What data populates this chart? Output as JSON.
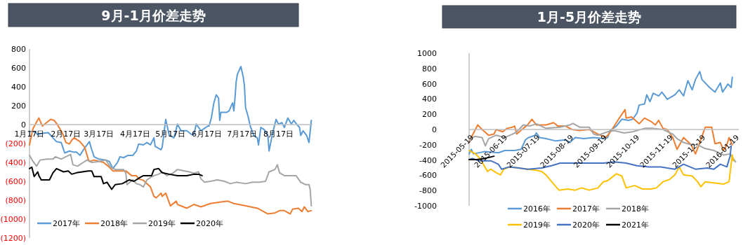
{
  "chart_data": [
    {
      "type": "line",
      "title": "9月-1月价差走势",
      "legend": "bottom",
      "xlim": [
        "--01-17",
        "--09-15"
      ],
      "ylim": [
        -1200,
        800
      ],
      "xticks": [
        {
          "value": "--01-17",
          "label": "1月17日"
        },
        {
          "value": "--02-17",
          "label": "2月17日"
        },
        {
          "value": "--03-17",
          "label": "3月17日"
        },
        {
          "value": "--04-17",
          "label": "4月17日"
        },
        {
          "value": "--05-17",
          "label": "5月17日"
        },
        {
          "value": "--06-17",
          "label": "6月17日"
        },
        {
          "value": "--07-17",
          "label": "7月17日"
        },
        {
          "value": "--08-17",
          "label": "8月17日"
        }
      ],
      "yticks": [
        800,
        600,
        400,
        200,
        0,
        {
          "value": -200,
          "label": "(200)"
        },
        {
          "value": -400,
          "label": "(400)"
        },
        {
          "value": -600,
          "label": "(600)"
        },
        {
          "value": -800,
          "label": "(800)"
        },
        {
          "value": -1000,
          "label": "(1000)"
        },
        {
          "value": -1200,
          "label": "(1200)"
        }
      ],
      "series": [
        {
          "name": "2017年",
          "color": "#5b9bd5",
          "x": [
            "--01-17",
            "--01-22",
            "--01-24",
            "--01-29",
            "--02-02",
            "--02-09",
            "--02-13",
            "--02-16",
            "--02-20",
            "--02-23",
            "--02-26",
            "--03-01",
            "--03-04",
            "--03-09",
            "--03-11",
            "--03-13",
            "--03-17",
            "--03-23",
            "--03-26",
            "--03-29",
            "--04-02",
            "--04-04",
            "--04-07",
            "--04-11",
            "--04-15",
            "--04-18",
            "--04-20",
            "--04-24",
            "--04-27",
            "--04-30",
            "--05-03",
            "--05-04",
            "--05-09",
            "--05-10",
            "--05-13",
            "--05-16",
            "--05-20",
            "--05-23",
            "--05-26",
            "--05-31",
            "--06-04",
            "--06-06",
            "--06-08",
            "--06-12",
            "--06-15",
            "--06-18",
            "--06-19",
            "--06-21",
            "--06-23",
            "--06-25",
            "--06-27",
            "--06-28",
            "--06-29",
            "--07-04",
            "--07-06",
            "--07-08",
            "--07-09",
            "--07-10",
            "--07-11",
            "--07-12",
            "--07-13",
            "--07-16",
            "--07-18",
            "--07-19",
            "--07-20",
            "--07-22",
            "--07-24",
            "--07-27",
            "--07-30",
            "--07-31",
            "--08-02",
            "--08-05",
            "--08-08",
            "--08-09",
            "--08-12",
            "--08-15",
            "--08-17",
            "--08-20",
            "--08-22",
            "--08-25",
            "--08-28",
            "--08-30",
            "--09-02",
            "--09-04",
            "--09-05",
            "--09-07",
            "--09-10",
            "--09-12",
            "--09-14"
          ],
          "values": [
            -70,
            -80,
            -105,
            -90,
            -85,
            -180,
            -190,
            -300,
            -280,
            -290,
            -290,
            -325,
            -265,
            -180,
            -265,
            -340,
            -365,
            -375,
            -390,
            -465,
            -400,
            -340,
            -350,
            -325,
            -325,
            -280,
            -205,
            -215,
            -190,
            -215,
            -140,
            -230,
            -265,
            -240,
            55,
            -115,
            -140,
            5,
            -65,
            -65,
            -105,
            -105,
            5,
            -65,
            -40,
            -15,
            -15,
            80,
            230,
            315,
            280,
            45,
            130,
            130,
            145,
            205,
            230,
            145,
            280,
            455,
            530,
            615,
            505,
            415,
            180,
            95,
            -15,
            -115,
            -140,
            -215,
            -30,
            -55,
            -115,
            -280,
            -90,
            55,
            5,
            20,
            -30,
            70,
            5,
            45,
            -5,
            -30,
            -115,
            -65,
            -115,
            -190,
            45
          ]
        },
        {
          "name": "2018年",
          "color": "#ed7d31",
          "x": [
            "--01-17",
            "--01-20",
            "--01-25",
            "--01-28",
            "--02-04",
            "--02-07",
            "--02-10",
            "--02-14",
            "--02-17",
            "--02-20",
            "--02-22",
            "--02-24",
            "--03-01",
            "--03-05",
            "--03-08",
            "--03-09",
            "--03-13",
            "--03-21",
            "--03-25",
            "--03-29",
            "--04-04",
            "--04-09",
            "--04-14",
            "--04-18",
            "--04-20",
            "--04-24",
            "--04-30",
            "--05-03",
            "--05-05",
            "--05-09",
            "--05-10",
            "--05-13",
            "--05-17",
            "--05-22",
            "--05-23",
            "--05-31",
            "--06-06",
            "--06-12",
            "--06-20",
            "--06-28",
            "--07-05",
            "--07-10",
            "--07-20",
            "--07-30",
            "--08-08",
            "--08-14",
            "--08-18",
            "--08-22",
            "--08-27",
            "--08-29",
            "--09-03",
            "--09-06",
            "--09-08",
            "--09-11",
            "--09-14"
          ],
          "values": [
            -215,
            -40,
            70,
            -15,
            55,
            45,
            -5,
            -90,
            -190,
            -205,
            -165,
            -140,
            -180,
            -240,
            -365,
            -390,
            -375,
            -400,
            -440,
            -490,
            -490,
            -490,
            -540,
            -540,
            -575,
            -590,
            -660,
            -760,
            -775,
            -725,
            -760,
            -725,
            -860,
            -810,
            -845,
            -885,
            -845,
            -870,
            -835,
            -820,
            -810,
            -835,
            -860,
            -885,
            -945,
            -935,
            -910,
            -910,
            -945,
            -895,
            -885,
            -920,
            -870,
            -920,
            -910
          ]
        },
        {
          "name": "2019年",
          "color": "#a5a5a5",
          "x": [
            "--01-17",
            "--01-20",
            "--01-23",
            "--01-26",
            "--02-01",
            "--02-06",
            "--02-08",
            "--02-13",
            "--02-17",
            "--02-21",
            "--02-23",
            "--02-27",
            "--03-02",
            "--03-07",
            "--03-11",
            "--03-17",
            "--03-23",
            "--03-27",
            "--03-31",
            "--04-04",
            "--04-07",
            "--04-09",
            "--04-10",
            "--04-15",
            "--04-18",
            "--04-21",
            "--04-24",
            "--04-27",
            "--04-30",
            "--05-03",
            "--05-07",
            "--05-10",
            "--05-14",
            "--05-19",
            "--05-23",
            "--05-29",
            "--06-02",
            "--06-06",
            "--06-10",
            "--06-12",
            "--06-15",
            "--06-20",
            "--06-26",
            "--07-02",
            "--07-07",
            "--07-12",
            "--07-20",
            "--07-26",
            "--08-01",
            "--08-06",
            "--08-09",
            "--08-14",
            "--08-16",
            "--08-18",
            "--08-22",
            "--08-28",
            "--09-01",
            "--09-05",
            "--09-09",
            "--09-12",
            "--09-13",
            "--09-14"
          ],
          "values": [
            -325,
            -390,
            -440,
            -375,
            -365,
            -365,
            -340,
            -365,
            -340,
            -315,
            -425,
            -440,
            -415,
            -375,
            -400,
            -390,
            -375,
            -450,
            -475,
            -475,
            -475,
            -510,
            -635,
            -585,
            -625,
            -635,
            -660,
            -585,
            -560,
            -540,
            -525,
            -500,
            -540,
            -515,
            -475,
            -490,
            -500,
            -515,
            -500,
            -575,
            -610,
            -600,
            -585,
            -600,
            -625,
            -610,
            -625,
            -610,
            -610,
            -600,
            -500,
            -475,
            -425,
            -510,
            -540,
            -540,
            -540,
            -610,
            -635,
            -635,
            -685,
            -860
          ]
        },
        {
          "name": "2020年",
          "color": "#000000",
          "x": [
            "--01-17",
            "--01-19",
            "--01-21",
            "--01-24",
            "--01-25",
            "--01-27",
            "--02-03",
            "--02-06",
            "--02-09",
            "--02-15",
            "--02-19",
            "--02-22",
            "--02-26",
            "--03-03",
            "--03-08",
            "--03-11",
            "--03-13",
            "--03-19",
            "--03-21",
            "--03-24",
            "--03-28",
            "--03-31",
            "--04-06",
            "--04-12",
            "--04-16",
            "--04-21",
            "--04-24",
            "--05-01",
            "--05-03",
            "--05-07",
            "--05-10",
            "--05-16",
            "--05-23",
            "--05-31",
            "--06-06",
            "--06-10",
            "--06-13"
          ],
          "values": [
            -465,
            -450,
            -550,
            -500,
            -540,
            -585,
            -585,
            -510,
            -465,
            -500,
            -490,
            -525,
            -510,
            -500,
            -490,
            -490,
            -550,
            -550,
            -625,
            -610,
            -685,
            -635,
            -625,
            -585,
            -600,
            -560,
            -540,
            -540,
            -475,
            -465,
            -510,
            -525,
            -540,
            -540,
            -525,
            -525,
            -540
          ]
        }
      ]
    },
    {
      "type": "line",
      "title": "1月-5月价差走势",
      "legend": "bottom",
      "xlim": [
        "2015-05-17",
        "2016-01-21"
      ],
      "ylim": [
        -1000,
        1000
      ],
      "xticks": [
        {
          "value": "2015-05-19",
          "label": "2015-05-19"
        },
        {
          "value": "2015-06-19",
          "label": "2015-06-19"
        },
        {
          "value": "2015-07-19",
          "label": "2015-07-19"
        },
        {
          "value": "2015-08-19",
          "label": "2015-08-19"
        },
        {
          "value": "2015-09-19",
          "label": "2015-09-19"
        },
        {
          "value": "2015-10-19",
          "label": "2015-10-19"
        },
        {
          "value": "2015-11-19",
          "label": "2015-11-19"
        },
        {
          "value": "2015-12-19",
          "label": "2015-12-19"
        },
        {
          "value": "2016-01-19",
          "label": "2016-01-19"
        }
      ],
      "yticks": [
        1000,
        800,
        600,
        400,
        200,
        0,
        -200,
        -400,
        -600,
        -800,
        -1000
      ],
      "series": [
        {
          "name": "2016年",
          "color": "#5b9bd5",
          "x": [
            "2015-05-17",
            "2015-05-19",
            "2015-05-21",
            "2015-05-31",
            "2015-06-13",
            "2015-06-19",
            "2015-06-28",
            "2015-07-04",
            "2015-07-08",
            "2015-07-11",
            "2015-07-17",
            "2015-07-18",
            "2015-07-21",
            "2015-07-27",
            "2015-08-05",
            "2015-08-14",
            "2015-08-18",
            "2015-08-23",
            "2015-08-31",
            "2015-09-09",
            "2015-09-18",
            "2015-09-22",
            "2015-09-24",
            "2015-09-30",
            "2015-10-05",
            "2015-10-11",
            "2015-10-15",
            "2015-10-19",
            "2015-10-21",
            "2015-10-26",
            "2015-10-28",
            "2015-10-31",
            "2015-11-03",
            "2015-11-08",
            "2015-11-11",
            "2015-11-16",
            "2015-11-23",
            "2015-11-27",
            "2015-12-01",
            "2015-12-05",
            "2015-12-09",
            "2015-12-12",
            "2015-12-16",
            "2015-12-18",
            "2015-12-25",
            "2015-12-30",
            "2016-01-04",
            "2016-01-06",
            "2016-01-11",
            "2016-01-14",
            "2016-01-15"
          ],
          "values": [
            -320,
            -260,
            -320,
            -290,
            -305,
            -275,
            -275,
            -260,
            -135,
            -105,
            -75,
            -45,
            -105,
            -120,
            -150,
            -135,
            -170,
            -105,
            -120,
            -105,
            -120,
            -105,
            -15,
            45,
            135,
            120,
            135,
            215,
            320,
            335,
            455,
            365,
            475,
            440,
            490,
            395,
            455,
            520,
            440,
            640,
            520,
            655,
            760,
            655,
            550,
            490,
            610,
            490,
            595,
            550,
            685
          ]
        },
        {
          "name": "2017年",
          "color": "#ed7d31",
          "x": [
            "2015-05-17",
            "2015-05-20",
            "2015-05-25",
            "2015-05-29",
            "2015-06-04",
            "2015-06-09",
            "2015-06-11",
            "2015-06-17",
            "2015-06-21",
            "2015-06-26",
            "2015-06-28",
            "2015-06-30",
            "2015-07-06",
            "2015-07-10",
            "2015-07-14",
            "2015-07-18",
            "2015-07-27",
            "2015-08-03",
            "2015-08-07",
            "2015-08-14",
            "2015-08-20",
            "2015-08-27",
            "2015-09-05",
            "2015-09-13",
            "2015-09-20",
            "2015-09-23",
            "2015-09-26",
            "2015-10-02",
            "2015-10-08",
            "2015-10-09",
            "2015-10-14",
            "2015-10-21",
            "2015-10-26",
            "2015-11-01",
            "2015-11-05",
            "2015-11-08",
            "2015-11-12",
            "2015-11-16",
            "2015-11-21",
            "2015-11-25",
            "2015-12-01",
            "2015-12-08",
            "2015-12-12",
            "2015-12-16",
            "2015-12-21",
            "2015-12-27",
            "2015-12-30",
            "2016-01-04",
            "2016-01-07",
            "2016-01-10",
            "2016-01-12",
            "2016-01-15"
          ],
          "values": [
            -170,
            -75,
            60,
            0,
            -75,
            -60,
            0,
            -30,
            15,
            30,
            45,
            -60,
            15,
            60,
            135,
            60,
            60,
            90,
            45,
            45,
            0,
            -15,
            0,
            -60,
            -105,
            -60,
            0,
            135,
            260,
            150,
            165,
            75,
            150,
            105,
            60,
            120,
            15,
            0,
            -105,
            -260,
            -105,
            -200,
            -320,
            -170,
            30,
            30,
            -185,
            -170,
            -275,
            -200,
            -105,
            -200
          ]
        },
        {
          "name": "2018年",
          "color": "#a5a5a5",
          "x": [
            "2015-05-17",
            "2015-05-22",
            "2015-05-29",
            "2015-06-01",
            "2015-06-04",
            "2015-06-11",
            "2015-06-19",
            "2015-06-26",
            "2015-06-30",
            "2015-07-06",
            "2015-07-12",
            "2015-07-18",
            "2015-07-27",
            "2015-08-09",
            "2015-08-18",
            "2015-08-21",
            "2015-08-27",
            "2015-09-05",
            "2015-09-09",
            "2015-09-13",
            "2015-09-22",
            "2015-09-28",
            "2015-10-07",
            "2015-10-15",
            "2015-10-26",
            "2015-11-03",
            "2015-11-12",
            "2015-11-21",
            "2015-11-25",
            "2015-12-01",
            "2015-12-08",
            "2015-12-14",
            "2015-12-20",
            "2015-12-29",
            "2016-01-07",
            "2016-01-13",
            "2016-01-18"
          ],
          "values": [
            -150,
            -90,
            -105,
            -215,
            -120,
            -75,
            -105,
            -60,
            -30,
            60,
            45,
            75,
            15,
            30,
            60,
            80,
            30,
            30,
            -60,
            -75,
            -30,
            -15,
            -45,
            -30,
            15,
            15,
            0,
            -60,
            -120,
            -170,
            -200,
            -200,
            -245,
            -275,
            -335,
            -320,
            -425
          ]
        },
        {
          "name": "2019年",
          "color": "#ffc000",
          "x": [
            "2015-05-17",
            "2015-05-19",
            "2015-05-23",
            "2015-05-27",
            "2015-06-03",
            "2015-06-06",
            "2015-06-11",
            "2015-06-15",
            "2015-06-18",
            "2015-06-24",
            "2015-07-02",
            "2015-07-10",
            "2015-07-18",
            "2015-07-23",
            "2015-07-27",
            "2015-08-03",
            "2015-08-08",
            "2015-08-16",
            "2015-08-23",
            "2015-08-29",
            "2015-09-05",
            "2015-09-13",
            "2015-09-18",
            "2015-09-22",
            "2015-09-26",
            "2015-09-30",
            "2015-10-05",
            "2015-10-09",
            "2015-10-17",
            "2015-10-24",
            "2015-11-01",
            "2015-11-06",
            "2015-11-12",
            "2015-11-18",
            "2015-11-23",
            "2015-11-27",
            "2015-12-01",
            "2015-12-09",
            "2015-12-14",
            "2015-12-17",
            "2015-12-21",
            "2015-12-29",
            "2016-01-07",
            "2016-01-12",
            "2016-01-15",
            "2016-01-16"
          ],
          "values": [
            -275,
            -290,
            -320,
            -380,
            -550,
            -520,
            -565,
            -595,
            -520,
            -490,
            -505,
            -520,
            -535,
            -550,
            -595,
            -715,
            -795,
            -780,
            -795,
            -765,
            -795,
            -765,
            -685,
            -670,
            -625,
            -580,
            -610,
            -765,
            -735,
            -780,
            -780,
            -765,
            -685,
            -655,
            -595,
            -490,
            -595,
            -610,
            -685,
            -750,
            -685,
            -700,
            -715,
            -685,
            -335,
            -410
          ]
        },
        {
          "name": "2020年",
          "color": "#4472c4",
          "x": [
            "2015-05-17",
            "2015-05-20",
            "2015-05-26",
            "2015-06-06",
            "2015-06-13",
            "2015-06-16",
            "2015-06-23",
            "2015-07-02",
            "2015-07-10",
            "2015-07-23",
            "2015-08-01",
            "2015-08-09",
            "2015-08-25",
            "2015-09-07",
            "2015-09-18",
            "2015-09-28",
            "2015-10-09",
            "2015-10-19",
            "2015-10-30",
            "2015-11-10",
            "2015-11-16",
            "2015-11-23",
            "2015-12-01",
            "2015-12-12",
            "2015-12-23",
            "2015-12-29",
            "2016-01-04",
            "2016-01-10",
            "2016-01-13",
            "2016-01-14"
          ],
          "values": [
            -395,
            -380,
            -410,
            -410,
            -455,
            -520,
            -490,
            -505,
            -520,
            -505,
            -475,
            -440,
            -440,
            -440,
            -440,
            -425,
            -440,
            -475,
            -490,
            -490,
            -505,
            -520,
            -455,
            -520,
            -505,
            -520,
            -455,
            -490,
            -350,
            -215
          ]
        },
        {
          "name": "2021年",
          "color": "#000000",
          "x": [
            "2015-05-17",
            "2015-05-24",
            "2015-05-31",
            "2015-06-09"
          ],
          "values": [
            -395,
            -395,
            -380,
            -350
          ]
        }
      ]
    }
  ]
}
